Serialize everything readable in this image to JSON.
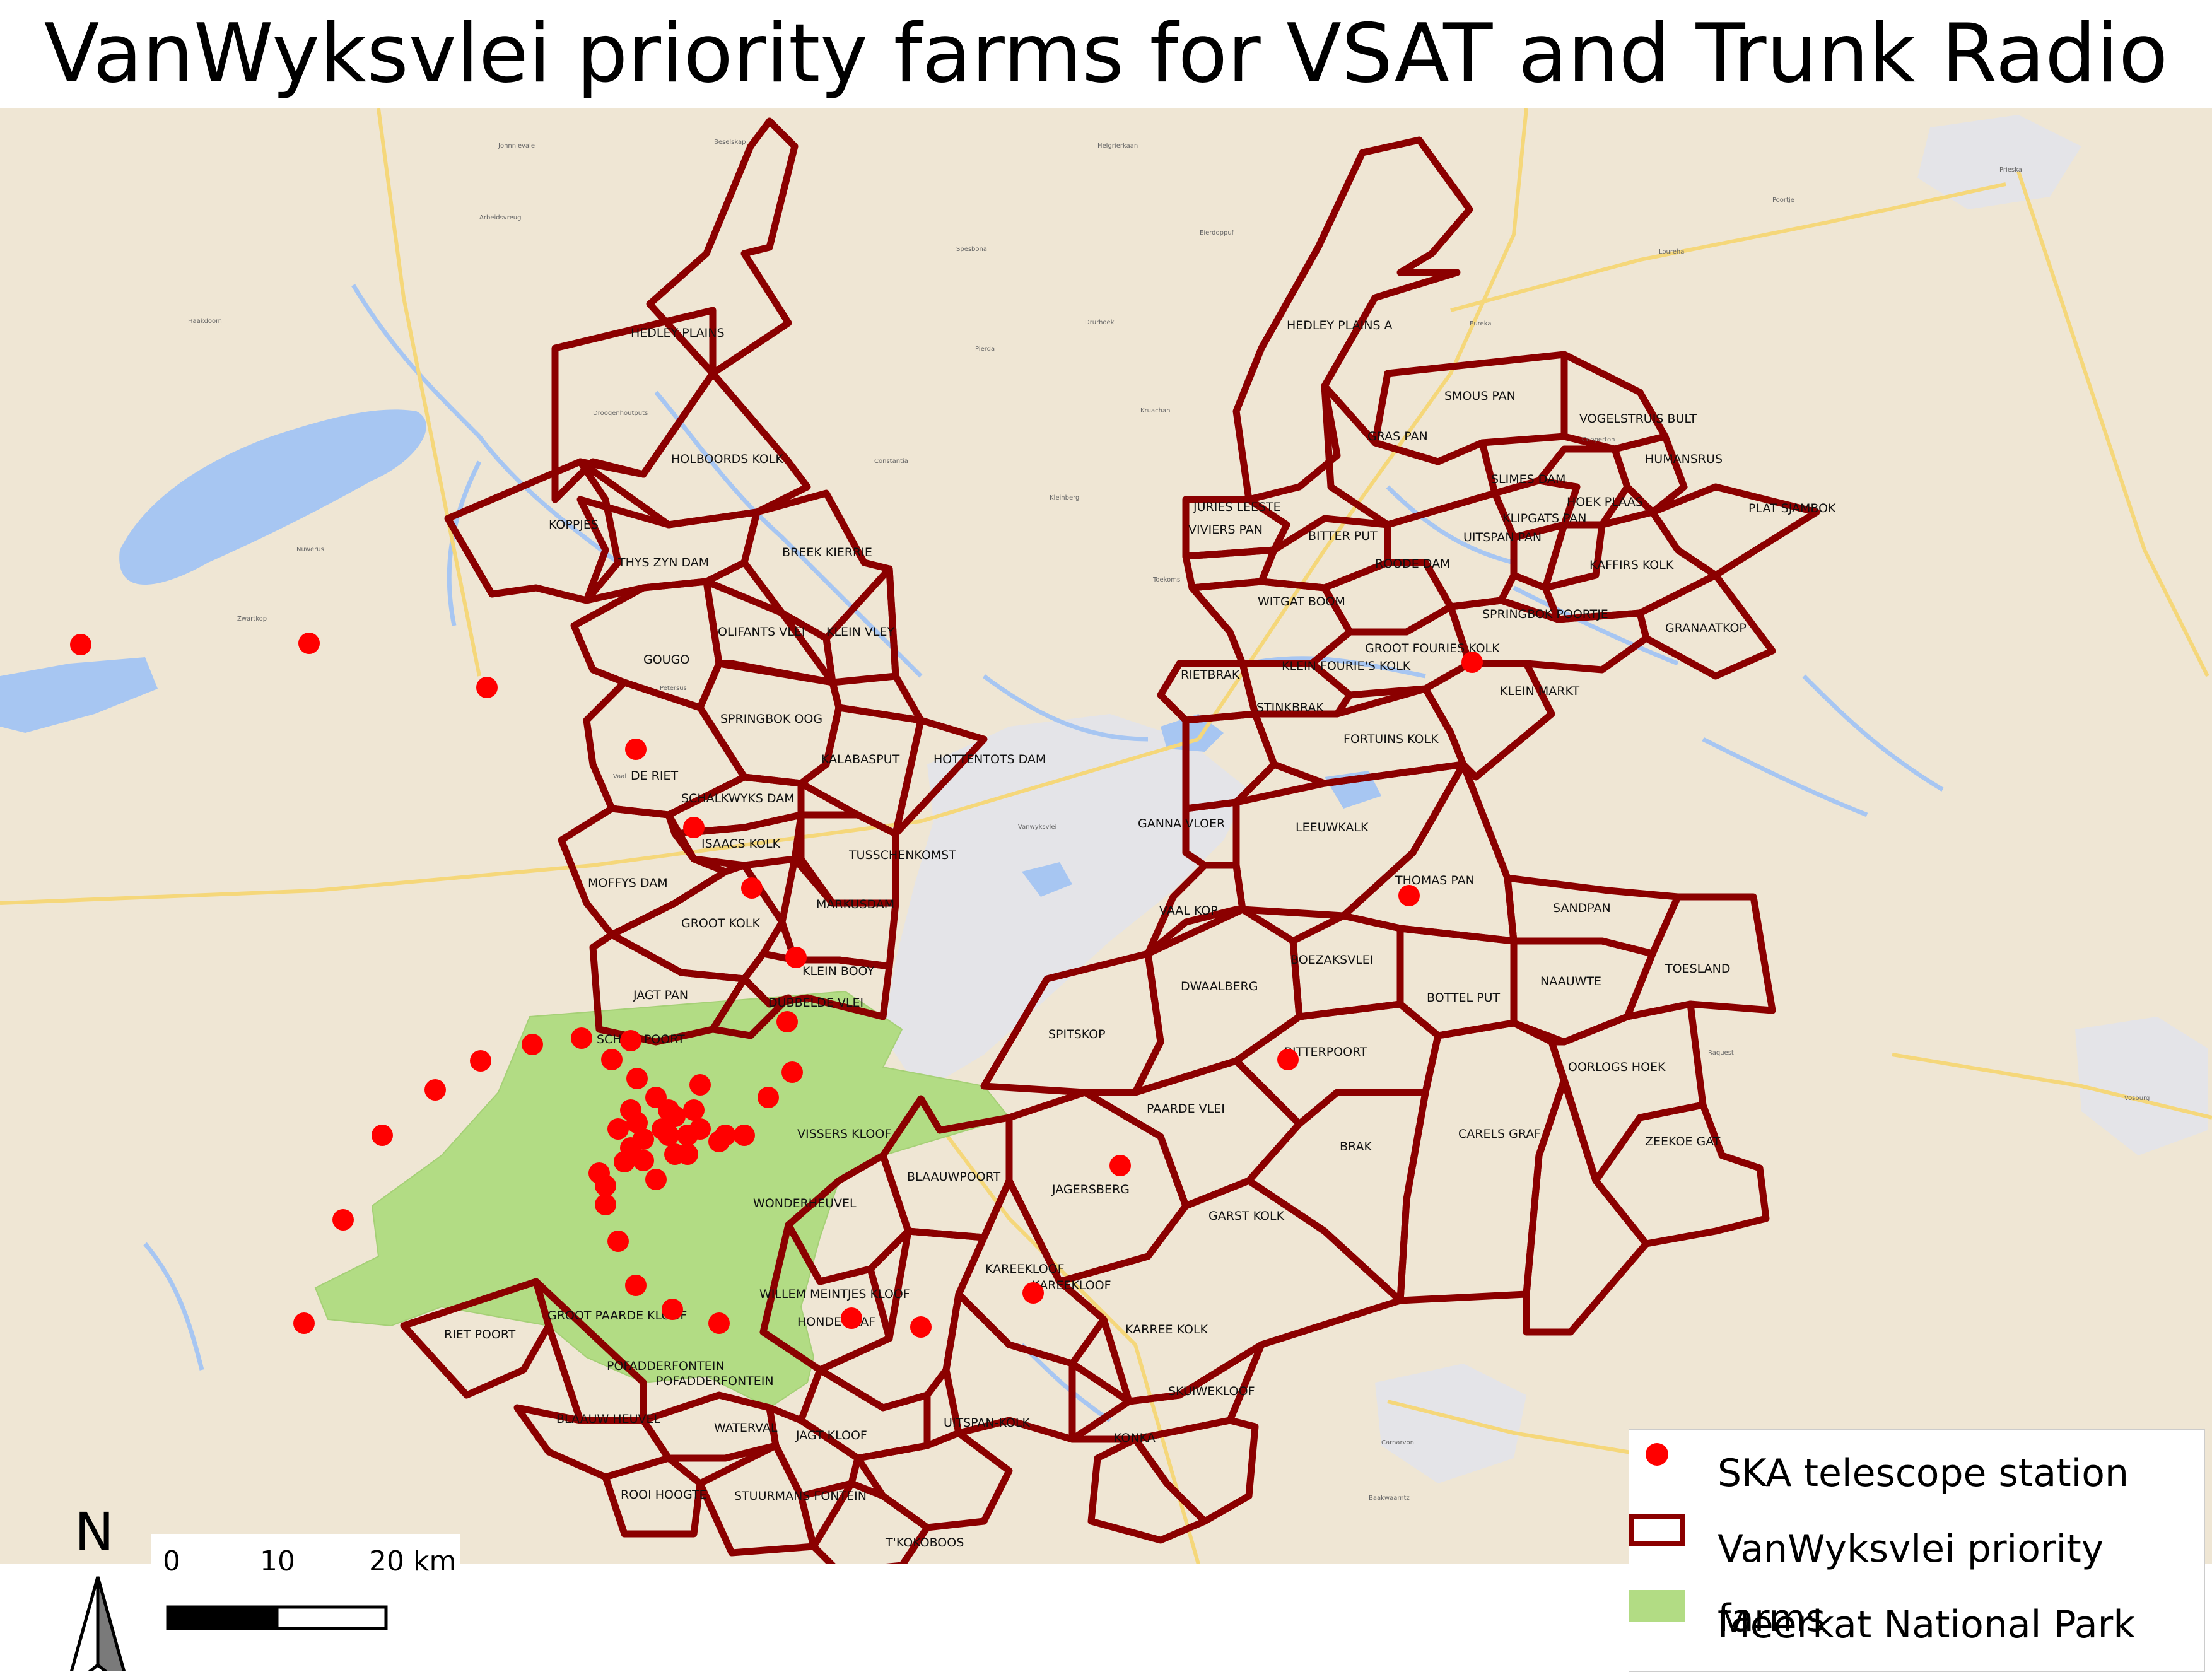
{
  "title": "VanWyksvlei priority farms for VSAT and Trunk Radio",
  "colors": {
    "farm_outline": "#8b0000",
    "ska_station": "#ff0000",
    "park_fill": "#b2dc84",
    "map_background": "#efe6d4",
    "water": "#a7c6f2",
    "dry_lake": "#e4e4e8"
  },
  "legend": {
    "items": [
      {
        "label": "SKA telescope station",
        "symbol": "red-dot"
      },
      {
        "label": "VanWyksvlei priority farms",
        "symbol": "dark-red-outline"
      },
      {
        "label": "Meerkat National Park",
        "symbol": "green-fill"
      }
    ]
  },
  "scale_bar": {
    "labels": [
      "0",
      "10",
      "20 km"
    ]
  },
  "north_arrow": {
    "label": "N"
  },
  "farms": [
    "HEDLEY PLAINS",
    "HOLBOORDS KOLK",
    "KOPPJES",
    "THYS ZYN DAM",
    "BREEK KIERRIE",
    "GOUGO",
    "OLIFANTS VLEI",
    "KLEIN VLEY",
    "SPRINGBOK OOG",
    "DE RIET",
    "KALABASPUT",
    "HOTTENTOTS DAM",
    "SCHALKWYKS DAM",
    "ISAACS KOLK",
    "MOFFYS DAM",
    "TUSSCHENKOMST",
    "MARKUSDAM",
    "GROOT KOLK",
    "KLEIN BOOY",
    "JAGT PAN",
    "DUBBELDE VLEI",
    "SCHIET POORT",
    "VISSERS KLOOF",
    "BLAAUWPOORT",
    "WONDERHEUVEL",
    "WILLEM MEINTJES KLOOF",
    "HONDE BLAF",
    "GROOT PAARDE KLOOF",
    "RIET POORT",
    "POFADDERFONTEIN",
    "POFADDERFONTEIN",
    "BLAAUW HEUVEL",
    "WATERVAL",
    "JAGT KLOOF",
    "ROOI HOOGTE",
    "STUURMANS FONTEIN",
    "UITSPAN-KOLK",
    "T'KOKOBOOS",
    "KAREEKLOOF",
    "KAREEKLOOF",
    "KARREE KOLK",
    "SKUIWEKLOOF",
    "KONKA",
    "HEDLEY PLAINS A",
    "SMOUS PAN",
    "VOGELSTRUIS BULT",
    "GRAS PAN",
    "HUMANSRUS",
    "SLIMES DAM",
    "HOEK PLAAS",
    "PLAT SJAMBOK",
    "JURIES LEESTE",
    "VIVIERS PAN",
    "BITTER PUT",
    "KLIPGATS PAN",
    "UITSPAN PAN",
    "KAFFIRS KOLK",
    "ROODE DAM",
    "WITGAT BOOM",
    "GROOT FOURIES KOLK",
    "SPRINGBOK POORTJE",
    "GRANAATKOP",
    "RIETBRAK",
    "KLEIN FOURIE'S KOLK",
    "KLEIN MARKT",
    "STINKBRAK",
    "FORTUINS KOLK",
    "GANNA VLOER",
    "LEEUWKALK",
    "THOMAS PAN",
    "SANDPAN",
    "VAAL KOP",
    "TOESLAND",
    "BOEZAKSVLEI",
    "DWAALBERG",
    "BOTTEL PUT",
    "NAAUWTE",
    "SPITSKOP",
    "BITTERPOORT",
    "OORLOGS HOEK",
    "PAARDE VLEI",
    "BRAK",
    "CARELS GRAF",
    "ZEEKOE GAT",
    "JAGERSBERG",
    "GARST KOLK"
  ],
  "towns": [
    "Johnnievale",
    "Beselskap",
    "Helgrierkaan",
    "Prieska",
    "Poortje",
    "Loureha",
    "Arbeidsvreug",
    "Spesbona",
    "Eierdoppuf",
    "Eureka",
    "Haakdoom",
    "Droogenhoutputs",
    "Pierda",
    "Drurhoek",
    "Kruachan",
    "Constantia",
    "Kleinberg",
    "Toekoms",
    "Nuwerus",
    "Zwartkop",
    "Petersus",
    "Vaal",
    "Vanwyksvlei",
    "Raquest",
    "Vosburg",
    "Carnarvon",
    "Baakwaarntz",
    "Copperton"
  ]
}
